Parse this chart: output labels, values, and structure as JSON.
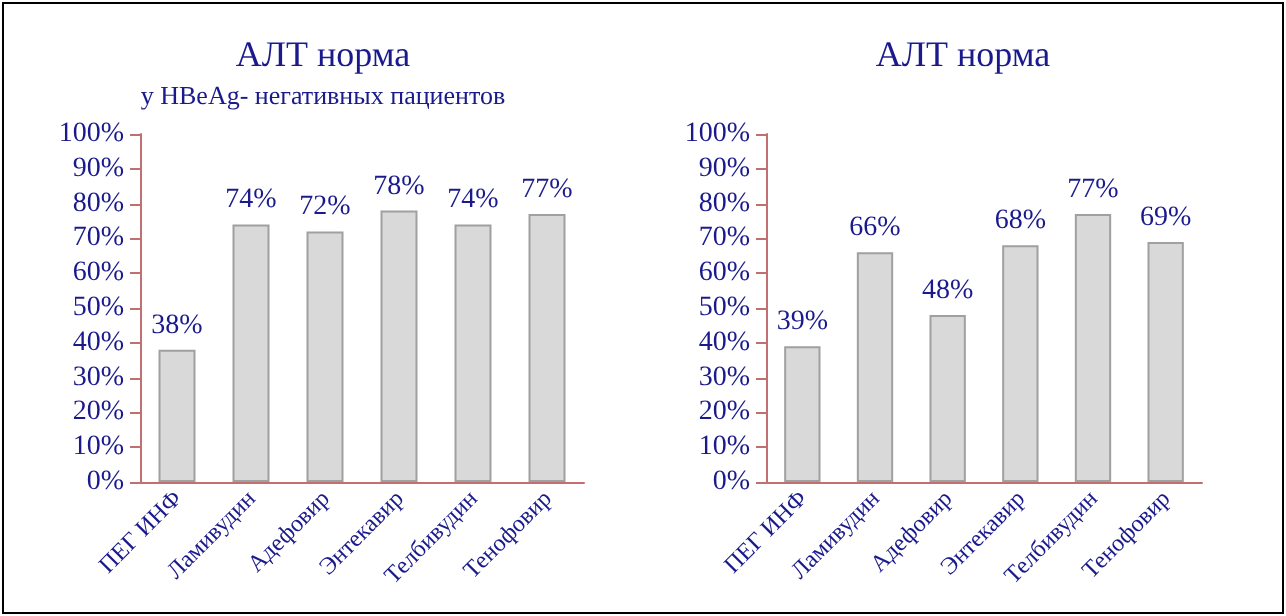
{
  "chart_data": [
    {
      "type": "bar",
      "title": "АЛТ норма",
      "subtitle": "у HBeAg- негативных пациентов",
      "categories": [
        "ПЕГ ИНФ",
        "Ламивудин",
        "Адефовир",
        "Энтекавир",
        "Телбивудин",
        "Тенофовир"
      ],
      "values": [
        38,
        74,
        72,
        78,
        74,
        77
      ],
      "value_labels": [
        "38%",
        "74%",
        "72%",
        "78%",
        "74%",
        "77%"
      ],
      "color": "#d9d9d9",
      "ylim": [
        0,
        100
      ],
      "yticks": [
        {
          "value": 0,
          "label": "0%"
        },
        {
          "value": 10,
          "label": "10%"
        },
        {
          "value": 20,
          "label": "20%"
        },
        {
          "value": 30,
          "label": "30%"
        },
        {
          "value": 40,
          "label": "40%"
        },
        {
          "value": 50,
          "label": "50%"
        },
        {
          "value": 60,
          "label": "60%"
        },
        {
          "value": 70,
          "label": "70%"
        },
        {
          "value": 80,
          "label": "80%"
        },
        {
          "value": 90,
          "label": "90%"
        },
        {
          "value": 100,
          "label": "100%"
        }
      ],
      "grid": false
    },
    {
      "type": "bar",
      "title": "АЛТ норма",
      "categories": [
        "ПЕГ ИНФ",
        "Ламивудин",
        "Адефовир",
        "Энтекавир",
        "Телбивудин",
        "Тенофовир"
      ],
      "values": [
        39,
        66,
        48,
        68,
        77,
        69
      ],
      "value_labels": [
        "39%",
        "66%",
        "48%",
        "68%",
        "77%",
        "69%"
      ],
      "color": "#d9d9d9",
      "ylim": [
        0,
        100
      ],
      "yticks": [
        {
          "value": 0,
          "label": "0%"
        },
        {
          "value": 10,
          "label": "10%"
        },
        {
          "value": 20,
          "label": "20%"
        },
        {
          "value": 30,
          "label": "30%"
        },
        {
          "value": 40,
          "label": "40%"
        },
        {
          "value": 50,
          "label": "50%"
        },
        {
          "value": 60,
          "label": "60%"
        },
        {
          "value": 70,
          "label": "70%"
        },
        {
          "value": 80,
          "label": "80%"
        },
        {
          "value": 90,
          "label": "90%"
        },
        {
          "value": 100,
          "label": "100%"
        }
      ],
      "grid": false
    }
  ]
}
